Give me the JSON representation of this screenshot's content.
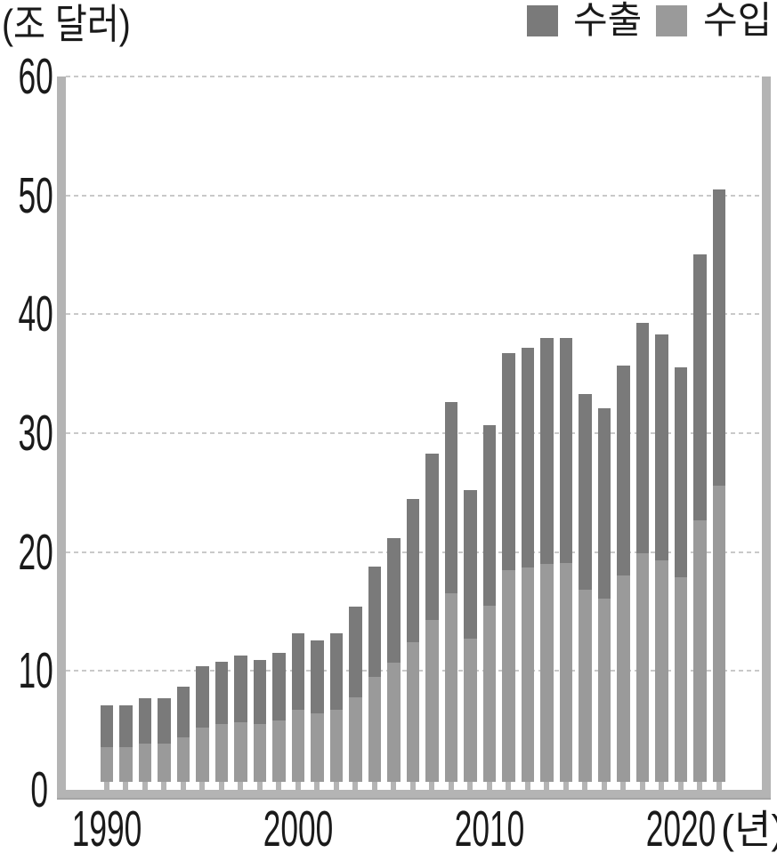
{
  "header": {
    "unit_label": "(조 달러)"
  },
  "legend": {
    "exports_label": "수출",
    "imports_label": "수입"
  },
  "xaxis": {
    "unit_label": "(년)"
  },
  "colors": {
    "exports": "#7a7a7a",
    "imports": "#9a9a9a",
    "axis": "#b4b4b4",
    "grid": "#c9c9c9",
    "text": "#1a1a1a"
  },
  "chart_data": {
    "type": "bar",
    "stacked": true,
    "title": "",
    "ylabel": "(조 달러)",
    "xlabel": "(년)",
    "x": [
      1990,
      1991,
      1992,
      1993,
      1994,
      1995,
      1996,
      1997,
      1998,
      1999,
      2000,
      2001,
      2002,
      2003,
      2004,
      2005,
      2006,
      2007,
      2008,
      2009,
      2010,
      2011,
      2012,
      2013,
      2014,
      2015,
      2016,
      2017,
      2018,
      2019,
      2020,
      2021,
      2022
    ],
    "series": [
      {
        "name": "수출",
        "stack_position": "top",
        "values": [
          3.5,
          3.5,
          3.8,
          3.8,
          4.3,
          5.2,
          5.3,
          5.6,
          5.4,
          5.7,
          6.5,
          6.2,
          6.5,
          7.6,
          9.3,
          10.5,
          12.1,
          14.0,
          16.1,
          12.5,
          15.2,
          18.2,
          18.5,
          19.0,
          18.9,
          16.5,
          16.0,
          17.7,
          19.4,
          19.0,
          17.6,
          22.3,
          24.9
        ]
      },
      {
        "name": "수입",
        "stack_position": "bottom",
        "values": [
          3.6,
          3.6,
          3.9,
          3.9,
          4.4,
          5.2,
          5.5,
          5.7,
          5.5,
          5.8,
          6.7,
          6.4,
          6.7,
          7.8,
          9.5,
          10.7,
          12.4,
          14.3,
          16.5,
          12.7,
          15.5,
          18.5,
          18.7,
          19.0,
          19.1,
          16.8,
          16.1,
          18.0,
          19.9,
          19.3,
          17.9,
          22.7,
          25.6
        ]
      }
    ],
    "totals": [
      7.1,
      7.1,
      7.7,
      7.7,
      8.7,
      10.4,
      10.8,
      11.3,
      10.9,
      11.5,
      13.2,
      12.6,
      13.2,
      15.4,
      18.8,
      21.2,
      24.5,
      28.3,
      32.6,
      25.2,
      30.7,
      36.7,
      37.2,
      38.0,
      38.0,
      33.3,
      32.1,
      35.7,
      39.3,
      38.3,
      35.5,
      45.0,
      50.5
    ],
    "ylim": [
      0,
      60
    ],
    "yticks": [
      0,
      10,
      20,
      30,
      40,
      50,
      60
    ],
    "xticks": [
      1990,
      2000,
      2010,
      2020
    ],
    "grid": "dotted-horizontal",
    "legend_position": "top-right"
  }
}
